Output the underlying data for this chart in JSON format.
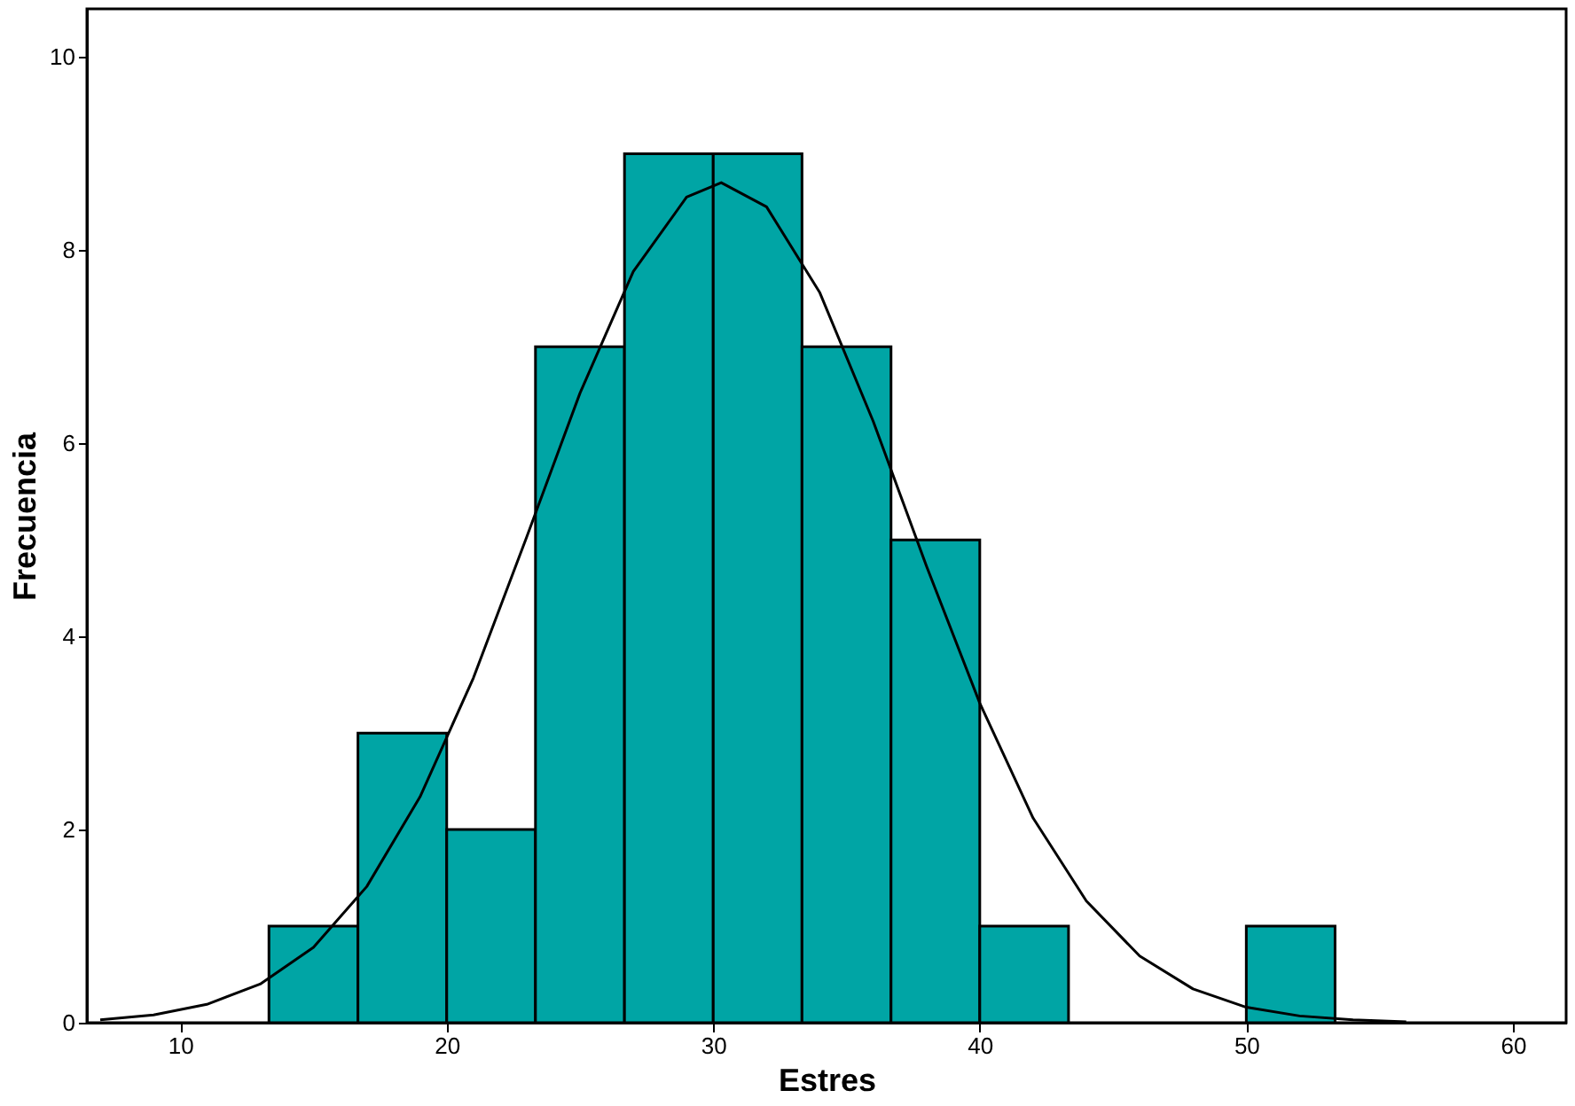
{
  "chart_data": {
    "type": "histogram",
    "xlabel": "Estres",
    "ylabel": "Frecuencia",
    "bins": [
      13.33,
      16.67,
      20,
      23.33,
      26.67,
      30,
      33.33,
      36.67,
      40,
      43.33,
      46.67,
      50,
      53.33
    ],
    "values": [
      1,
      3,
      2,
      7,
      9,
      9,
      7,
      5,
      1,
      null,
      null,
      1
    ],
    "color": "#00a5a5",
    "series": [
      {
        "type": "line",
        "color": "#000000",
        "x": [
          7,
          9,
          11,
          13,
          15,
          17,
          19,
          21,
          23,
          25,
          27,
          29,
          30.3,
          32,
          34,
          36,
          38,
          40,
          42,
          44,
          46,
          48,
          50,
          52,
          54,
          56
        ],
        "values": [
          0.03,
          0.08,
          0.19,
          0.4,
          0.78,
          1.41,
          2.34,
          3.57,
          5.03,
          6.52,
          7.78,
          8.55,
          8.7,
          8.45,
          7.56,
          6.23,
          4.73,
          3.31,
          2.12,
          1.26,
          0.69,
          0.35,
          0.16,
          0.07,
          0.03,
          0.01
        ]
      }
    ],
    "xlim": [
      6.5,
      62
    ],
    "xticks": [
      10,
      20,
      30,
      40,
      50,
      60
    ],
    "ylim": [
      0,
      10.5
    ],
    "yticks": [
      0,
      2,
      4,
      6,
      8,
      10
    ],
    "grid": false
  }
}
